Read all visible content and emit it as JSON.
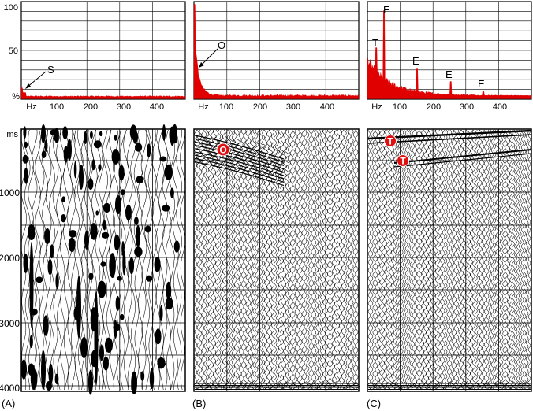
{
  "figure": {
    "panels": [
      {
        "id": "A",
        "panel_label": "(A)",
        "spectrum": {
          "y_ticks": [
            "100",
            "50",
            "%"
          ],
          "x_ticks": [
            "Hz",
            "100",
            "200",
            "300",
            "400"
          ],
          "annotations": [
            {
              "text": "S"
            }
          ]
        },
        "section": {
          "y_ticks": [
            "ms",
            "1000",
            "2000",
            "3000",
            "4000"
          ],
          "markers": []
        }
      },
      {
        "id": "B",
        "panel_label": "(B)",
        "spectrum": {
          "y_ticks": [],
          "x_ticks": [
            "Hz",
            "100",
            "200",
            "300",
            "400"
          ],
          "annotations": [
            {
              "text": "O"
            }
          ]
        },
        "section": {
          "y_ticks": [],
          "markers": [
            {
              "text": "O"
            }
          ]
        }
      },
      {
        "id": "C",
        "panel_label": "(C)",
        "spectrum": {
          "y_ticks": [],
          "x_ticks": [
            "Hz",
            "100",
            "200",
            "300",
            "400"
          ],
          "annotations": [
            {
              "text": "T"
            },
            {
              "text": "E"
            },
            {
              "text": "E"
            },
            {
              "text": "E"
            },
            {
              "text": "E"
            }
          ]
        },
        "section": {
          "y_ticks": [],
          "markers": [
            {
              "text": "T"
            },
            {
              "text": "T"
            }
          ]
        }
      }
    ]
  },
  "colors": {
    "spectrum_fill": "#e00000",
    "marker_fill": "#e01010",
    "marker_text": "#ffffff",
    "grid": "#000000",
    "wiggle": "#000000"
  }
}
